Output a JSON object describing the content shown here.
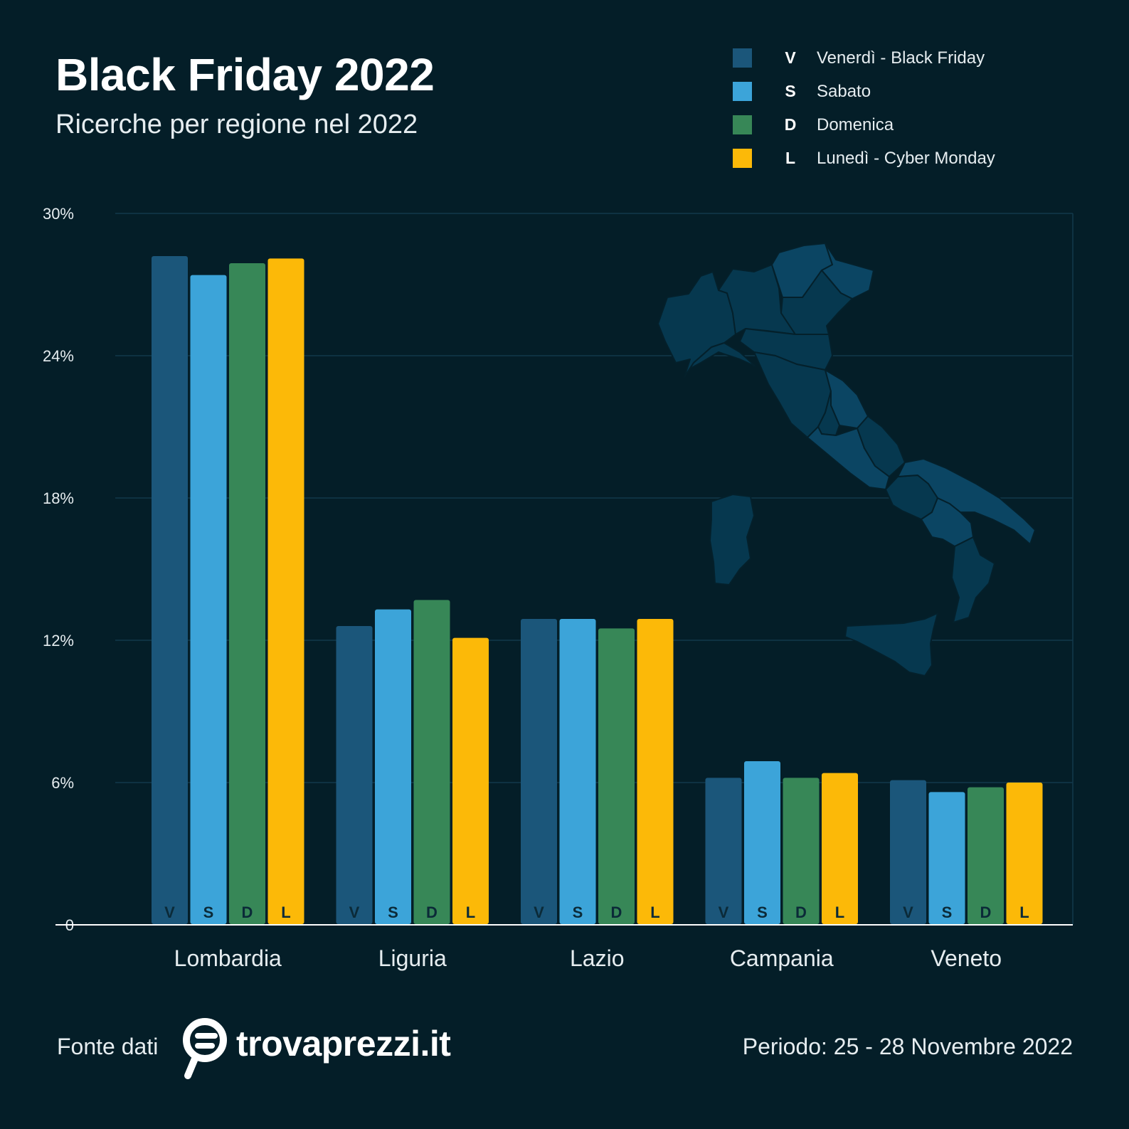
{
  "header": {
    "title": "Black Friday 2022",
    "subtitle": "Ricerche per regione nel 2022"
  },
  "legend": [
    {
      "code": "V",
      "label": "Venerdì - Black Friday",
      "color": "#1b567a"
    },
    {
      "code": "S",
      "label": "Sabato",
      "color": "#3ca4d9"
    },
    {
      "code": "D",
      "label": "Domenica",
      "color": "#378757"
    },
    {
      "code": "L",
      "label": "Lunedì - Cyber Monday",
      "color": "#fcb908"
    }
  ],
  "chart_data": {
    "type": "bar",
    "title": "Black Friday 2022",
    "subtitle": "Ricerche per regione nel 2022",
    "categories": [
      "Lombardia",
      "Liguria",
      "Lazio",
      "Campania",
      "Veneto"
    ],
    "series": [
      {
        "name": "Venerdì - Black Friday",
        "code": "V",
        "color": "#1b567a",
        "values": [
          28.2,
          12.6,
          12.9,
          6.2,
          6.1
        ]
      },
      {
        "name": "Sabato",
        "code": "S",
        "color": "#3ca4d9",
        "values": [
          27.4,
          13.3,
          12.9,
          6.9,
          5.6
        ]
      },
      {
        "name": "Domenica",
        "code": "D",
        "color": "#378757",
        "values": [
          27.9,
          13.7,
          12.5,
          6.2,
          5.8
        ]
      },
      {
        "name": "Lunedì - Cyber Monday",
        "code": "L",
        "color": "#fcb908",
        "values": [
          28.1,
          12.1,
          12.9,
          6.4,
          6.0
        ]
      }
    ],
    "yticks": [
      "0",
      "6%",
      "12%",
      "18%",
      "24%",
      "30%"
    ],
    "ytick_values": [
      0,
      6,
      12,
      18,
      24,
      30
    ],
    "ylim": [
      0,
      30
    ],
    "xlabel": "",
    "ylabel": "",
    "grid": true,
    "legend_position": "top-right"
  },
  "footer": {
    "source_label": "Fonte dati",
    "brand": "trovaprezzi.it",
    "period": "Periodo: 25 - 28 Novembre 2022"
  }
}
